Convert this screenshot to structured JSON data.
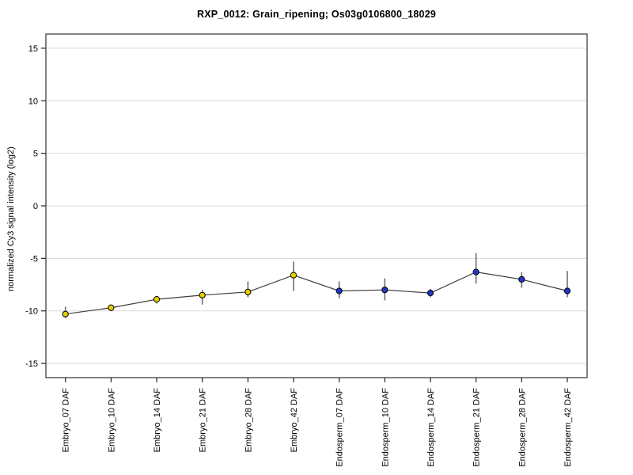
{
  "page": {
    "background": "#ffffff"
  },
  "header": {
    "title": "RXP_0012: Grain_ripening; Os03g0106800_18029"
  },
  "chart_data": {
    "type": "line",
    "title": "RXP_0012: Grain_ripening; Os03g0106800_18029",
    "xlabel": "",
    "ylabel": "normalized Cy3 signal intensity (log2)",
    "ylim": [
      -16.35,
      16.35
    ],
    "yticks": [
      15,
      10,
      5,
      0,
      -5,
      -10,
      -15
    ],
    "grid": true,
    "legend_position": "none",
    "categories": [
      "Embryo_07 DAF",
      "Embryo_10 DAF",
      "Embryo_14 DAF",
      "Embryo_21 DAF",
      "Embryo_28 DAF",
      "Embryo_42 DAF",
      "Endosperm_07 DAF",
      "Endosperm_10 DAF",
      "Endosperm_14 DAF",
      "Endosperm_21 DAF",
      "Endosperm_28 DAF",
      "Endosperm_42 DAF"
    ],
    "series": [
      {
        "name": "normalized Cy3 signal intensity",
        "values": [
          -10.3,
          -9.7,
          -8.9,
          -8.5,
          -8.2,
          -6.6,
          -8.1,
          -8.0,
          -8.3,
          -6.3,
          -7.0,
          -8.1
        ],
        "err_high": [
          -9.6,
          -9.4,
          -8.6,
          -8.0,
          -7.2,
          -5.3,
          -7.2,
          -6.9,
          -7.9,
          -4.5,
          -6.3,
          -6.2
        ],
        "err_low": [
          -10.7,
          -10.0,
          -9.3,
          -9.4,
          -8.7,
          -8.1,
          -8.8,
          -9.0,
          -8.7,
          -7.4,
          -7.8,
          -8.7
        ],
        "point_groups": [
          "Embryo",
          "Embryo",
          "Embryo",
          "Embryo",
          "Embryo",
          "Embryo",
          "Endosperm",
          "Endosperm",
          "Endosperm",
          "Endosperm",
          "Endosperm",
          "Endosperm"
        ]
      }
    ],
    "colors": {
      "Embryo": "#e6cf00",
      "Endosperm": "#2236c9",
      "marker_outline": "#000000",
      "line": "#3d3d3d",
      "error_bar": "#6e6e6e",
      "grid": "#d8d8d8",
      "border": "#4d4d4d",
      "tick": "#222222",
      "text": "#000000"
    }
  }
}
